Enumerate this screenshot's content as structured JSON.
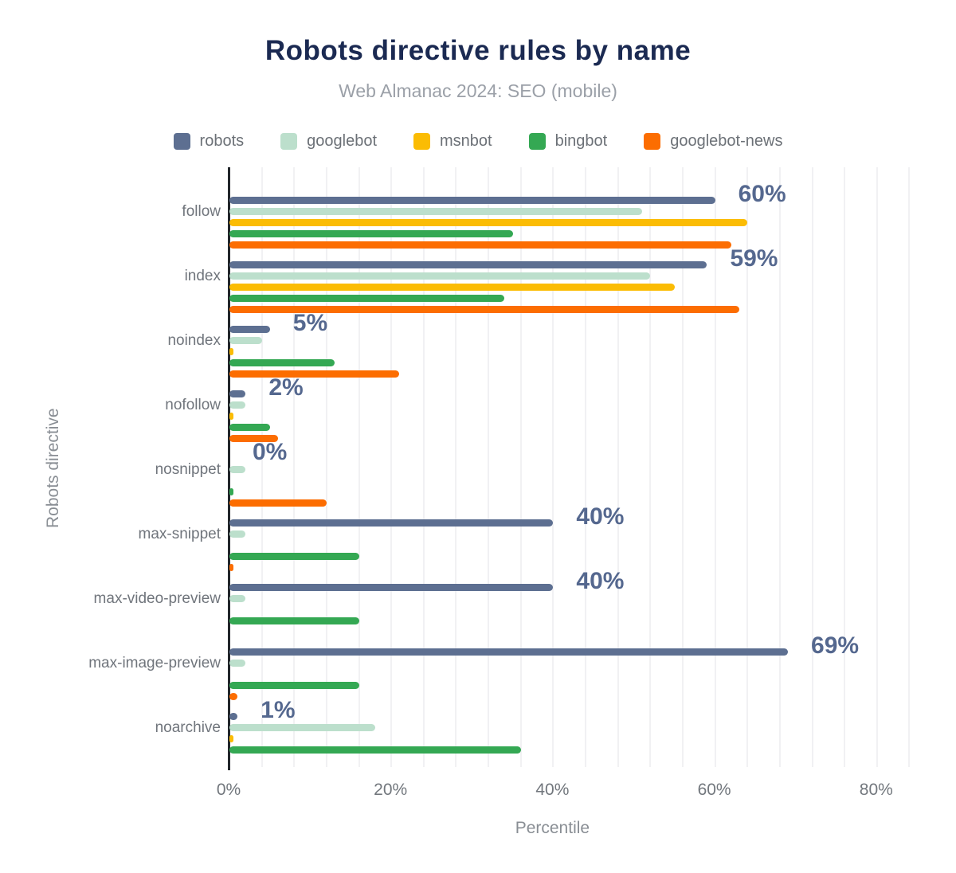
{
  "title": "Robots directive rules by name",
  "subtitle": "Web Almanac 2024: SEO (mobile)",
  "x_axis_title": "Percentile",
  "y_axis_title": "Robots directive",
  "chart_data": {
    "type": "bar",
    "orientation": "horizontal",
    "title": "Robots directive rules by name",
    "subtitle": "Web Almanac 2024: SEO (mobile)",
    "xlabel": "Percentile",
    "ylabel": "Robots directive",
    "xlim": [
      0,
      85
    ],
    "x_tick_values": [
      0,
      20,
      40,
      60,
      80
    ],
    "x_tick_labels": [
      "0%",
      "20%",
      "40%",
      "60%",
      "80%"
    ],
    "grid": "vertical minor gridlines every 4%",
    "legend_position": "top",
    "categories": [
      "follow",
      "index",
      "noindex",
      "nofollow",
      "nosnippet",
      "max-snippet",
      "max-video-preview",
      "max-image-preview",
      "noarchive"
    ],
    "series": [
      {
        "name": "robots",
        "color": "#5d6f91",
        "values": [
          60,
          59,
          5,
          2,
          0,
          40,
          40,
          69,
          1
        ]
      },
      {
        "name": "googlebot",
        "color": "#bcdfcc",
        "values": [
          51,
          52,
          4,
          2,
          2,
          2,
          2,
          2,
          18
        ]
      },
      {
        "name": "msnbot",
        "color": "#fbbc04",
        "values": [
          64,
          55,
          0.5,
          0.5,
          0,
          0,
          0,
          0,
          0.5
        ]
      },
      {
        "name": "bingbot",
        "color": "#34a853",
        "values": [
          35,
          34,
          13,
          5,
          0.5,
          16,
          16,
          16,
          36
        ]
      },
      {
        "name": "googlebot-news",
        "color": "#fc6d01",
        "values": [
          62,
          63,
          21,
          6,
          12,
          0.5,
          0,
          1,
          0
        ]
      }
    ],
    "data_labels": {
      "labeled_series": "robots",
      "values": [
        "60%",
        "59%",
        "5%",
        "2%",
        "0%",
        "40%",
        "40%",
        "69%",
        "1%"
      ]
    }
  },
  "colors": {
    "background": "#ffffff",
    "title_text": "#1b2a52",
    "subtitle_text": "#9ba0a8",
    "legend_text": "#6c7177",
    "category_text": "#70757c",
    "tick_text": "#72777d",
    "axis_title_text": "#898e94",
    "data_label_text": "#55688f",
    "grid_line": "#f1f1f3",
    "axis_line": "#22262b"
  }
}
